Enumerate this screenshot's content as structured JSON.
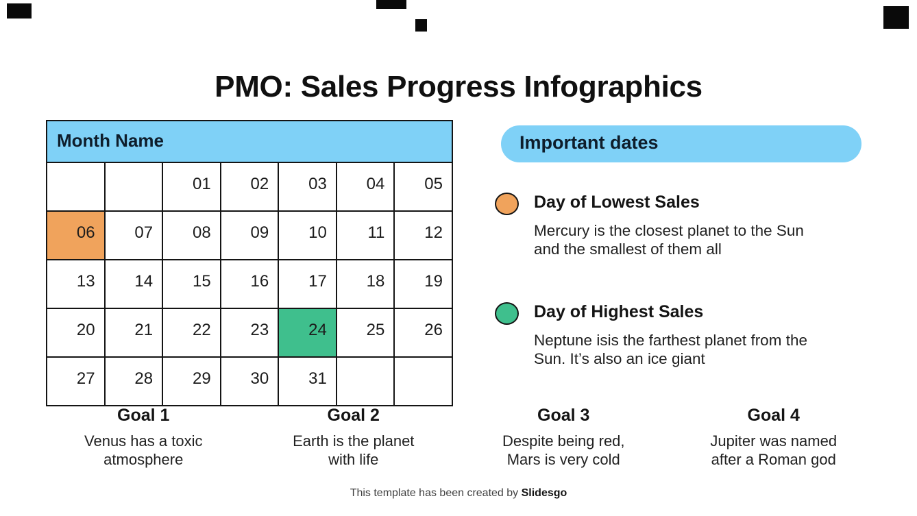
{
  "slide": {
    "title": "PMO: Sales Progress Infographics",
    "footer": {
      "text": "This template has been created by ",
      "brand": "Slidesgo"
    }
  },
  "calendar": {
    "header": "Month Name",
    "rows": [
      [
        "",
        "",
        "01",
        "02",
        "03",
        "04",
        "05"
      ],
      [
        "06",
        "07",
        "08",
        "09",
        "10",
        "11",
        "12"
      ],
      [
        "13",
        "14",
        "15",
        "16",
        "17",
        "18",
        "19"
      ],
      [
        "20",
        "21",
        "22",
        "23",
        "24",
        "25",
        "26"
      ],
      [
        "27",
        "28",
        "29",
        "30",
        "31",
        "",
        ""
      ]
    ],
    "lowest_day": "06",
    "highest_day": "24"
  },
  "important_dates": {
    "title": "Important dates",
    "items": [
      {
        "marker_color": "#F0A35C",
        "label": "Day of Lowest Sales",
        "description": "Mercury is the closest planet to the Sun\nand the smallest of them all"
      },
      {
        "marker_color": "#3FBF8D",
        "label": "Day of Highest Sales",
        "description": "Neptune isis the farthest planet from the\nSun. It’s also an ice giant"
      }
    ]
  },
  "goals": [
    {
      "title": "Goal 1",
      "text": "Venus has a toxic\natmosphere"
    },
    {
      "title": "Goal 2",
      "text": "Earth is the planet\nwith life"
    },
    {
      "title": "Goal 3",
      "text": "Despite being red,\nMars is very cold"
    },
    {
      "title": "Goal 4",
      "text": "Jupiter was named\nafter a Roman god"
    }
  ],
  "colors": {
    "accent_blue": "#7FD1F7",
    "lowest_orange": "#F0A35C",
    "highest_green": "#3FBF8D",
    "grid_line": "#141414"
  }
}
